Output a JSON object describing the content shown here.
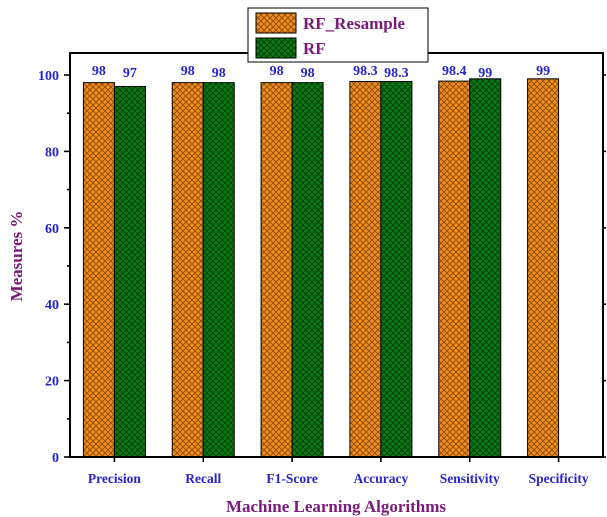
{
  "chart_data": {
    "type": "bar",
    "categories": [
      "Precision",
      "Recall",
      "F1-Score",
      "Accuracy",
      "Sensitivity",
      "Specificity"
    ],
    "series": [
      {
        "name": "RF_Resample",
        "values": [
          98,
          98,
          98,
          98.3,
          98.4,
          99
        ],
        "labels": [
          "98",
          "98",
          "98",
          "98.3",
          "98.4",
          "99"
        ],
        "color": "#f28c1a",
        "hatch": "#8a4a0a"
      },
      {
        "name": "RF",
        "values": [
          97,
          98,
          98,
          98.3,
          99,
          null
        ],
        "labels": [
          "97",
          "98",
          "98",
          "98.3",
          "99",
          ""
        ],
        "color": "#0a7a14",
        "hatch": "#053d0a"
      }
    ],
    "xlabel": "Machine Learning Algorithms",
    "ylabel": "Measures %",
    "ylim": [
      0,
      100
    ],
    "yticks": [
      0,
      20,
      40,
      60,
      80,
      100
    ],
    "grid": false,
    "legend_position": "top-center"
  }
}
